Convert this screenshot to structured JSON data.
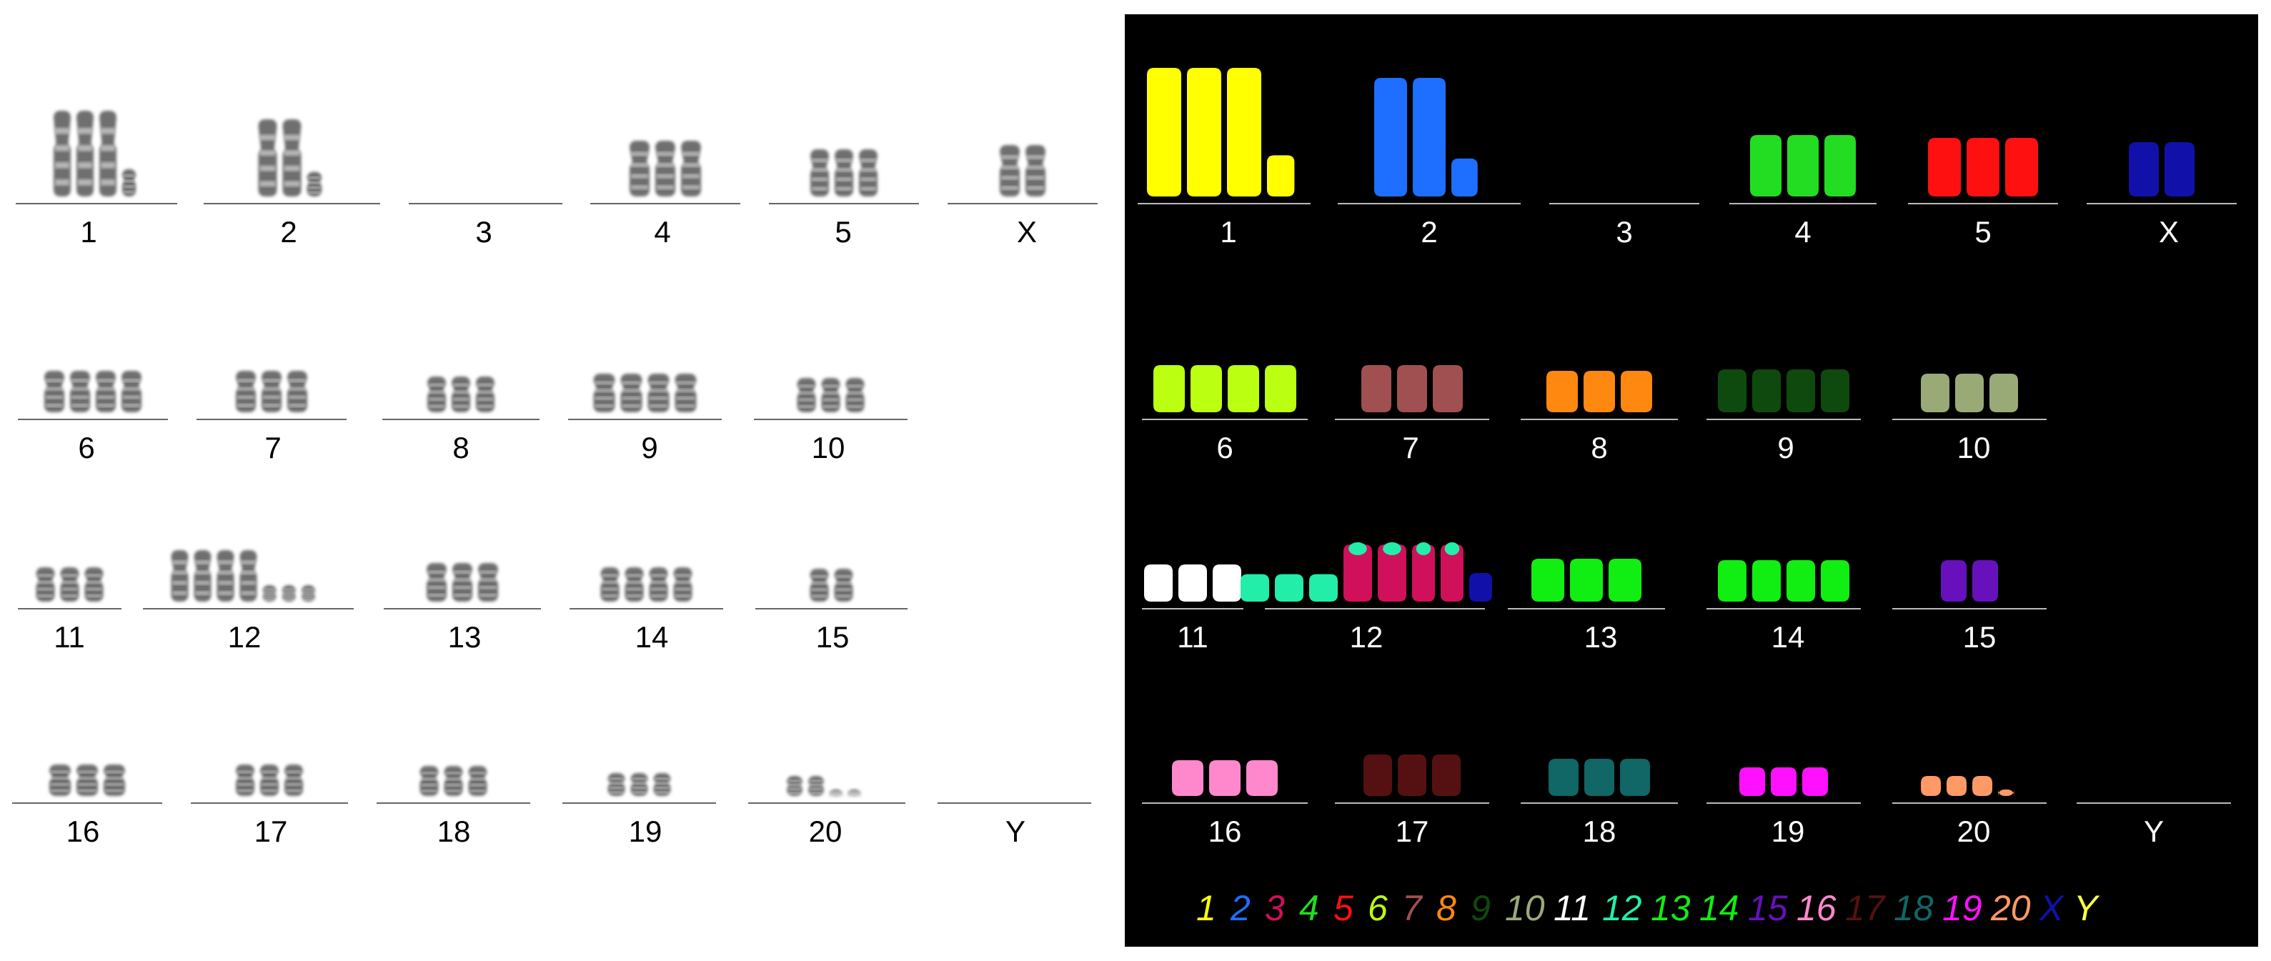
{
  "karyogram_labels": [
    "1",
    "2",
    "3",
    "4",
    "5",
    "X",
    "6",
    "7",
    "8",
    "9",
    "10",
    "11",
    "12",
    "13",
    "14",
    "15",
    "16",
    "17",
    "18",
    "19",
    "20",
    "Y"
  ],
  "color_key": [
    {
      "label": "1",
      "color": "#FFFF00"
    },
    {
      "label": "2",
      "color": "#1E6EFF"
    },
    {
      "label": "3",
      "color": "#D0105A"
    },
    {
      "label": "4",
      "color": "#22DD22"
    },
    {
      "label": "5",
      "color": "#FF1010"
    },
    {
      "label": "6",
      "color": "#BBFF11"
    },
    {
      "label": "7",
      "color": "#A05050"
    },
    {
      "label": "8",
      "color": "#FF8811"
    },
    {
      "label": "9",
      "color": "#0E4A0E"
    },
    {
      "label": "10",
      "color": "#99AA77"
    },
    {
      "label": "11",
      "color": "#FFFFFF"
    },
    {
      "label": "12",
      "color": "#22EEAA"
    },
    {
      "label": "13",
      "color": "#11EE11"
    },
    {
      "label": "14",
      "color": "#11EE11"
    },
    {
      "label": "15",
      "color": "#6611BB"
    },
    {
      "label": "16",
      "color": "#FF88CC"
    },
    {
      "label": "17",
      "color": "#551111"
    },
    {
      "label": "18",
      "color": "#116666"
    },
    {
      "label": "19",
      "color": "#FF11FF"
    },
    {
      "label": "20",
      "color": "#FF9966"
    },
    {
      "label": "X",
      "color": "#1111AA"
    },
    {
      "label": "Y",
      "color": "#FFFF44"
    }
  ]
}
